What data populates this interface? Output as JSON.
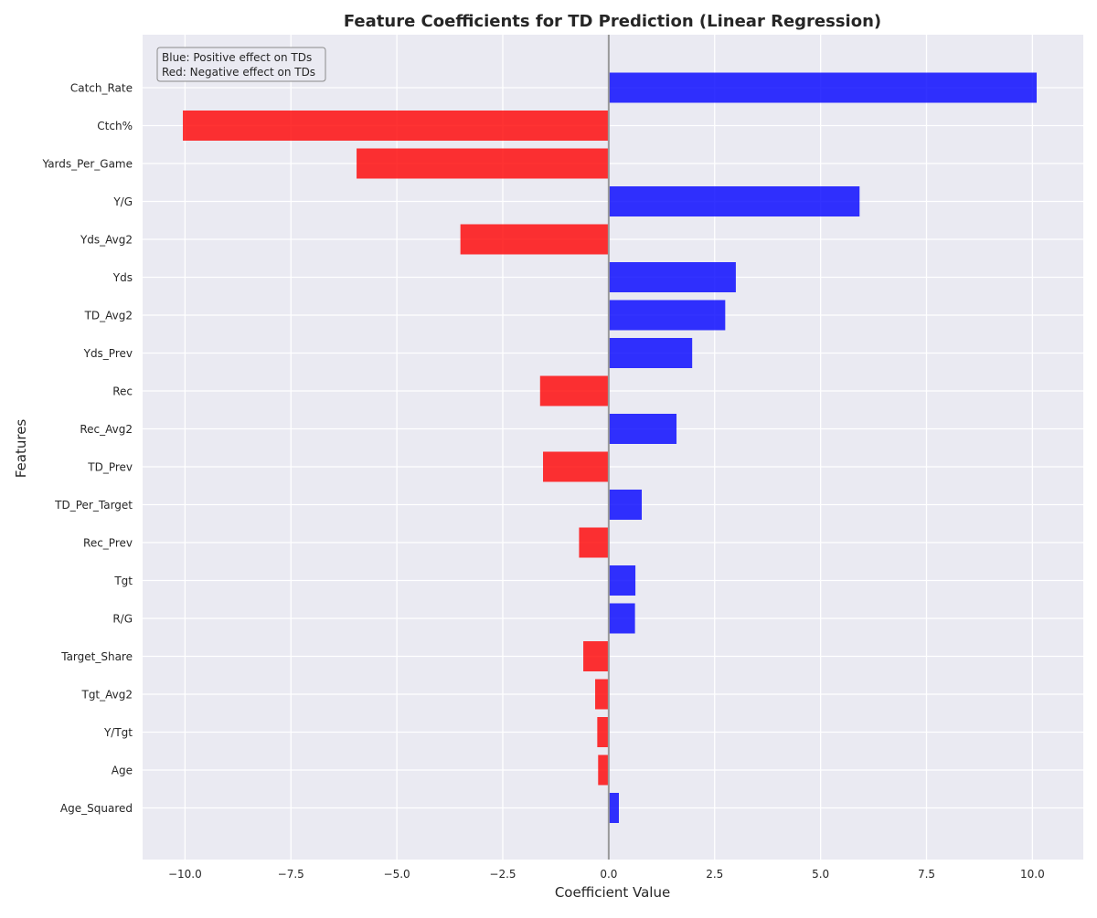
{
  "chart_data": {
    "type": "bar",
    "orientation": "horizontal",
    "title": "Feature Coefficients for TD Prediction (Linear Regression)",
    "xlabel": "Coefficient Value",
    "ylabel": "Features",
    "xlim": [
      -11.0,
      11.2
    ],
    "xticks": [
      -10.0,
      -7.5,
      -5.0,
      -2.5,
      0.0,
      2.5,
      5.0,
      7.5,
      10.0
    ],
    "xtick_labels": [
      "−10.0",
      "−7.5",
      "−5.0",
      "−2.5",
      "0.0",
      "2.5",
      "5.0",
      "7.5",
      "10.0"
    ],
    "grid": true,
    "legend": {
      "placement": "top-left",
      "lines": [
        "Blue: Positive effect on TDs",
        "Red: Negative effect on TDs"
      ]
    },
    "colors": {
      "positive": "#0000ff",
      "negative": "#ff0000",
      "background": "#eaeaf2",
      "grid": "#ffffff",
      "zero_line": "#999999"
    },
    "categories": [
      "Catch_Rate",
      "Ctch%",
      "Yards_Per_Game",
      "Y/G",
      "Yds_Avg2",
      "Yds",
      "TD_Avg2",
      "Yds_Prev",
      "Rec",
      "Rec_Avg2",
      "TD_Prev",
      "TD_Per_Target",
      "Rec_Prev",
      "Tgt",
      "R/G",
      "Target_Share",
      "Tgt_Avg2",
      "Y/Tgt",
      "Age",
      "Age_Squared"
    ],
    "values": [
      10.1,
      -10.05,
      -5.95,
      5.92,
      -3.5,
      3.0,
      2.75,
      1.97,
      -1.62,
      1.6,
      -1.55,
      0.78,
      -0.7,
      0.63,
      0.62,
      -0.6,
      -0.32,
      -0.27,
      -0.25,
      0.24
    ]
  }
}
